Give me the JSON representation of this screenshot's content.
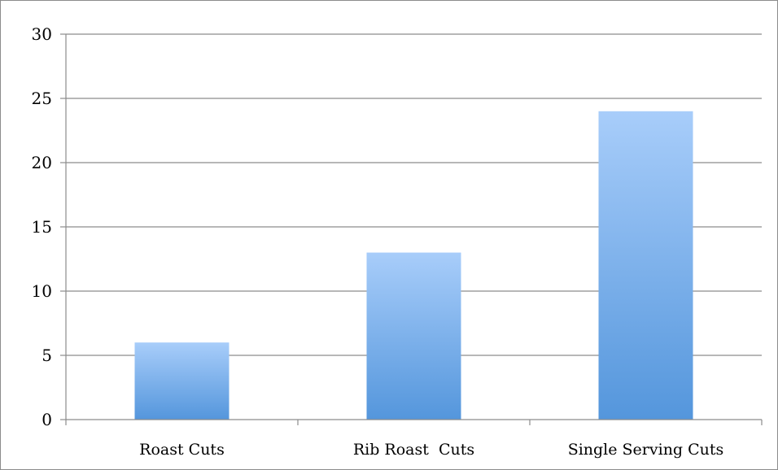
{
  "chart_data": {
    "type": "bar",
    "categories": [
      "Roast Cuts",
      "Rib Roast  Cuts",
      "Single Serving Cuts"
    ],
    "series": [
      {
        "values": [
          6,
          13,
          24
        ],
        "color_top": "#a8cdfa",
        "color_bottom": "#5496dc"
      }
    ],
    "ylim": [
      0,
      30
    ],
    "yticks": [
      0,
      5,
      10,
      15,
      20,
      25,
      30
    ],
    "grid": true,
    "legend": "none",
    "title": "",
    "xlabel": "",
    "ylabel": ""
  }
}
